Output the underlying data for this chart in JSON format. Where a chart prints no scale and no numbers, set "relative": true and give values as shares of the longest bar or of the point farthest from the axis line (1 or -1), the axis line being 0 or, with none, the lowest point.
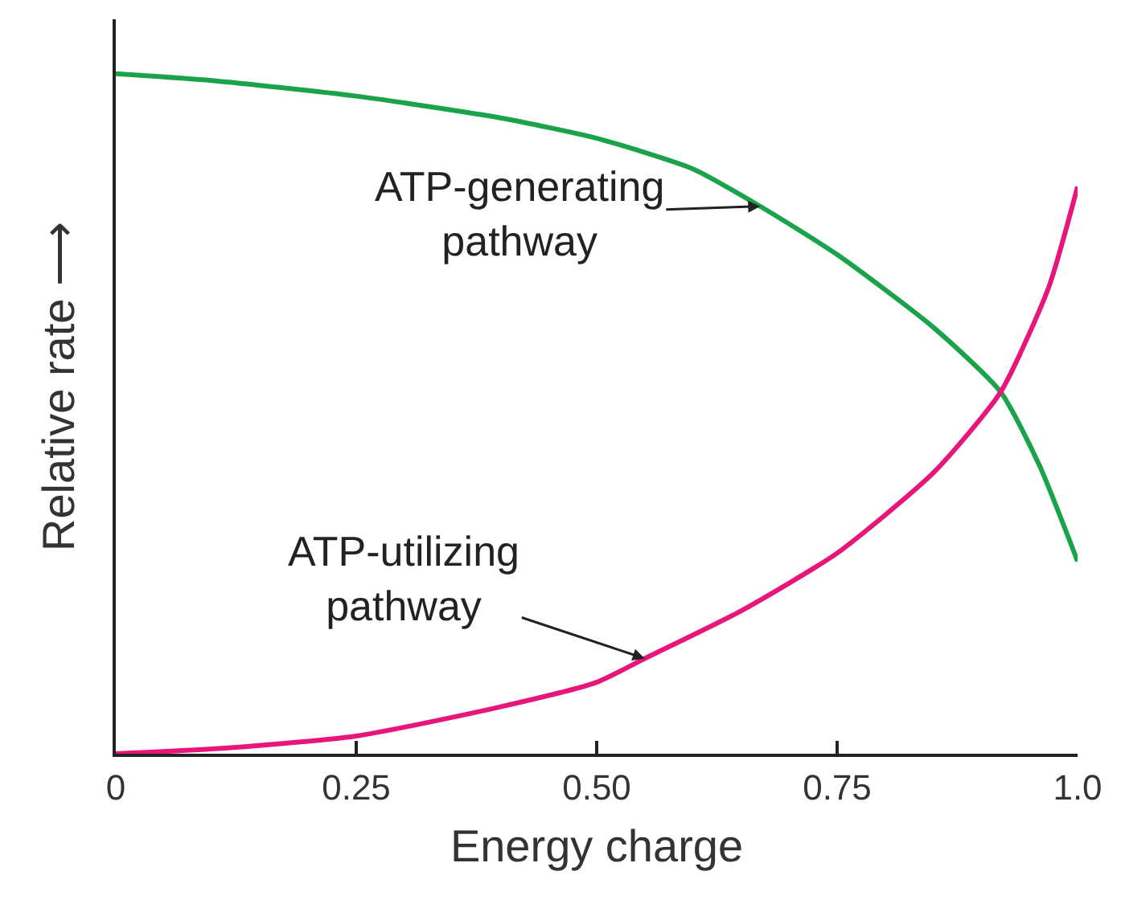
{
  "chart_data": {
    "type": "line",
    "relative": true,
    "xlabel": "Energy charge",
    "ylabel": "Relative rate ⟶",
    "xlim": [
      0,
      1
    ],
    "xticks": [
      0,
      0.25,
      {
        "value": 0.5,
        "label": "0.50"
      },
      0.75,
      {
        "value": 1,
        "label": "1.0"
      }
    ],
    "legend": false,
    "marker": "none",
    "line_style": "solid",
    "series": [
      {
        "color": "#1aa34a",
        "x": [
          0,
          0.1,
          0.25,
          0.4,
          0.5,
          0.6,
          0.67,
          0.75,
          0.85,
          0.92,
          0.96,
          1.0
        ],
        "values": [
          1.0,
          0.99,
          0.967,
          0.935,
          0.905,
          0.86,
          0.805,
          0.734,
          0.627,
          0.532,
          0.425,
          0.283
        ]
      },
      {
        "color": "#e8157a",
        "x": [
          0,
          0.1,
          0.25,
          0.4,
          0.5,
          0.55,
          0.65,
          0.75,
          0.85,
          0.92,
          0.97,
          1.0
        ],
        "values": [
          0,
          0.007,
          0.026,
          0.069,
          0.105,
          0.14,
          0.21,
          0.295,
          0.413,
          0.532,
          0.686,
          0.834
        ]
      }
    ],
    "annotations": [
      {
        "text": "ATP-generating\npathway",
        "x": 0.67,
        "y": 0.805
      },
      {
        "text": "ATP-utilizing\npathway",
        "x": 0.55,
        "y": 0.14
      }
    ]
  }
}
